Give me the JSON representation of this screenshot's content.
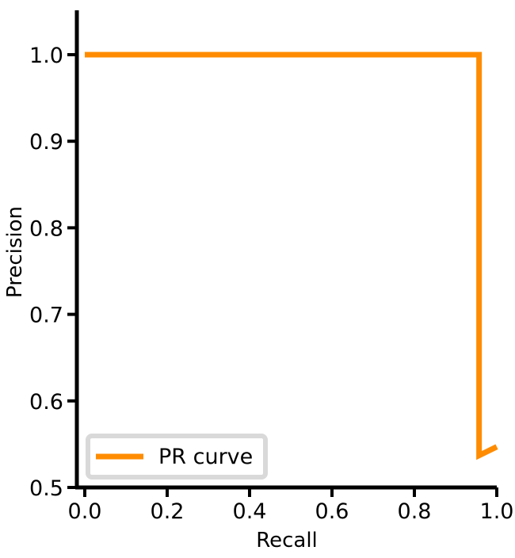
{
  "chart_data": {
    "type": "line",
    "title": "",
    "xlabel": "Recall",
    "ylabel": "Precision",
    "xlim": [
      -0.02,
      1.0
    ],
    "ylim": [
      0.5,
      1.05
    ],
    "xticks": [
      0.0,
      0.2,
      0.4,
      0.6,
      0.8,
      1.0
    ],
    "xtick_labels": [
      "0.0",
      "0.2",
      "0.4",
      "0.6",
      "0.8",
      "1.0"
    ],
    "yticks": [
      0.5,
      0.6,
      0.7,
      0.8,
      0.9,
      1.0
    ],
    "ytick_labels": [
      "0.5",
      "0.6",
      "0.7",
      "0.8",
      "0.9",
      "1.0"
    ],
    "grid": false,
    "legend_position": "lower-left",
    "series": [
      {
        "name": "PR curve",
        "color": "#ff8c00",
        "x": [
          0.0,
          0.957,
          0.957,
          1.0
        ],
        "y": [
          1.0,
          1.0,
          0.537,
          0.547
        ]
      }
    ]
  }
}
